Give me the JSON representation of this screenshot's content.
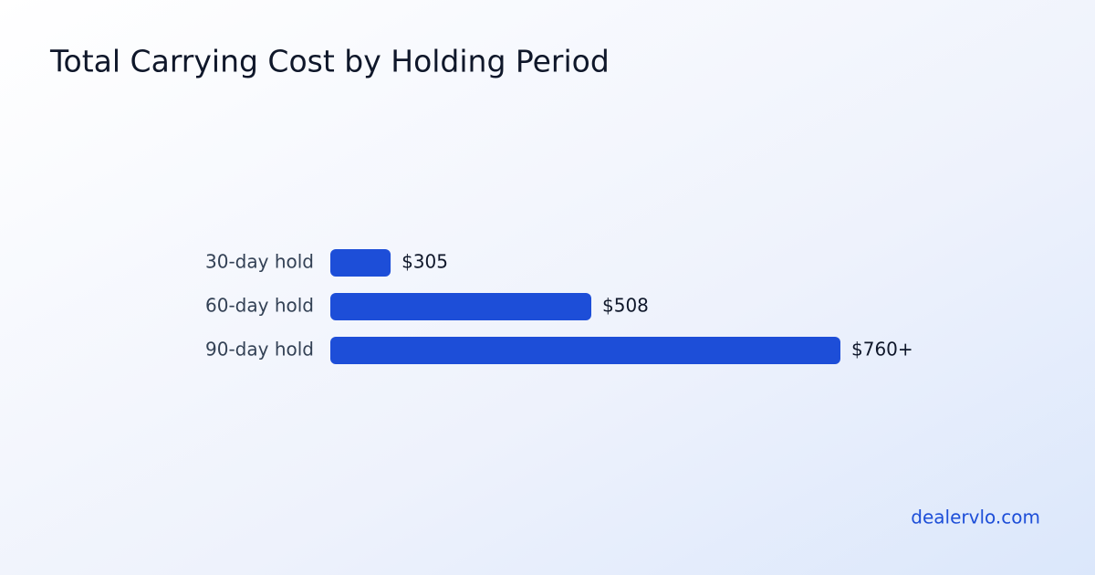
{
  "chart_data": {
    "type": "bar",
    "orientation": "horizontal",
    "title": "Total Carrying Cost by Holding Period",
    "categories": [
      "30-day hold",
      "60-day hold",
      "90-day hold"
    ],
    "values": [
      305,
      508,
      760
    ],
    "value_labels": [
      "$305",
      "$508",
      "$760+"
    ],
    "color": "#1d4ed8",
    "xlim": [
      244,
      760
    ],
    "source": "dealervlo.com"
  }
}
